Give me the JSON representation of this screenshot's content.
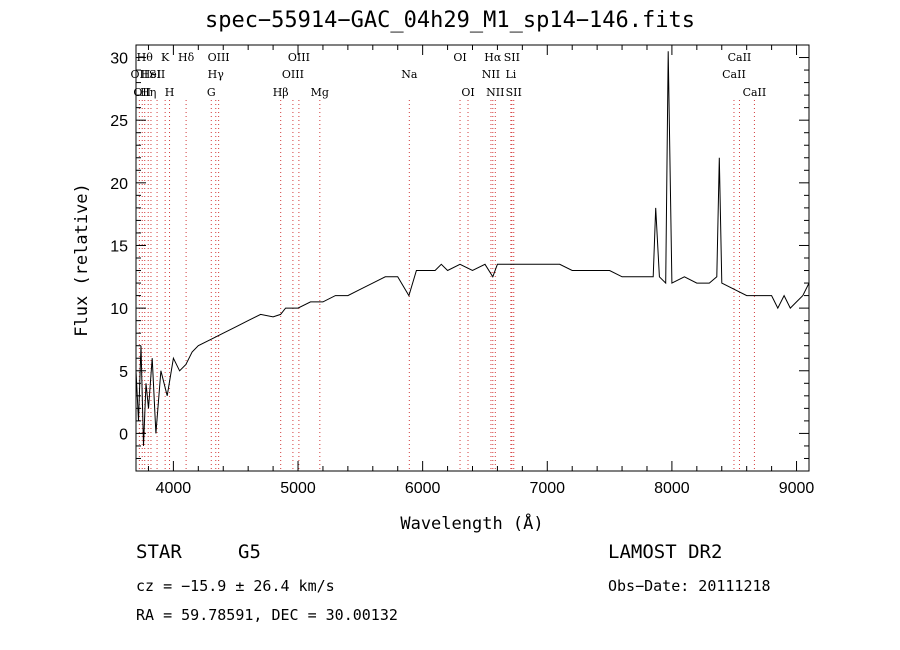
{
  "chart_data": {
    "type": "line",
    "title": "spec−55914−GAC_04h29_M1_sp14−146.fits",
    "xlabel": "Wavelength (Å)",
    "ylabel": "Flux (relative)",
    "xlim": [
      3700,
      9100
    ],
    "ylim": [
      -3,
      31
    ],
    "x_ticks": [
      4000,
      5000,
      6000,
      7000,
      8000,
      9000
    ],
    "y_ticks": [
      0,
      5,
      10,
      15,
      20,
      25,
      30
    ],
    "x_tick_labels": [
      "4000",
      "5000",
      "6000",
      "7000",
      "8000",
      "9000"
    ],
    "y_tick_labels": [
      "0",
      "5",
      "10",
      "15",
      "20",
      "25",
      "30"
    ],
    "grid": false,
    "series": [
      {
        "color": "#000000",
        "x": [
          3700,
          3720,
          3740,
          3760,
          3780,
          3800,
          3830,
          3860,
          3900,
          3950,
          4000,
          4050,
          4100,
          4150,
          4200,
          4300,
          4400,
          4500,
          4600,
          4700,
          4800,
          4860,
          4900,
          5000,
          5100,
          5200,
          5300,
          5400,
          5500,
          5600,
          5700,
          5800,
          5890,
          5950,
          6000,
          6100,
          6150,
          6200,
          6300,
          6400,
          6500,
          6563,
          6600,
          6700,
          6800,
          6900,
          7000,
          7100,
          7200,
          7300,
          7400,
          7500,
          7600,
          7700,
          7800,
          7850,
          7870,
          7900,
          7950,
          7970,
          8000,
          8100,
          8200,
          8300,
          8360,
          8380,
          8400,
          8500,
          8600,
          8700,
          8800,
          8850,
          8900,
          8950,
          9000,
          9050,
          9100
        ],
        "y": [
          5,
          1,
          7,
          -1,
          4,
          2,
          6,
          0,
          5,
          3,
          6,
          5,
          5.5,
          6.5,
          7,
          7.5,
          8,
          8.5,
          9,
          9.5,
          9.3,
          9.5,
          10,
          10,
          10.5,
          10.5,
          11,
          11,
          11.5,
          12,
          12.5,
          12.5,
          11,
          13,
          13,
          13,
          13.5,
          13,
          13.5,
          13,
          13.5,
          12.5,
          13.5,
          13.5,
          13.5,
          13.5,
          13.5,
          13.5,
          13,
          13,
          13,
          13,
          12.5,
          12.5,
          12.5,
          12.5,
          18,
          12.5,
          12,
          30.5,
          12,
          12.5,
          12,
          12,
          12.5,
          22,
          12,
          11.5,
          11,
          11,
          11,
          10,
          11,
          10,
          10.5,
          11,
          12
        ]
      }
    ],
    "lines": [
      {
        "x": 3727,
        "label": "OII",
        "row": 2
      },
      {
        "x": 3750,
        "label": "OII",
        "row": 3
      },
      {
        "x": 3770,
        "label": "Hθ",
        "row": 1
      },
      {
        "x": 3798,
        "label": "Hη",
        "row": 3
      },
      {
        "x": 3820,
        "label": "HeI",
        "row": 2
      },
      {
        "x": 3869,
        "label": "SII",
        "row": 2
      },
      {
        "x": 3934,
        "label": "K",
        "row": 1
      },
      {
        "x": 3969,
        "label": "H",
        "row": 3
      },
      {
        "x": 4102,
        "label": "Hδ",
        "row": 1
      },
      {
        "x": 4304,
        "label": "G",
        "row": 3
      },
      {
        "x": 4340,
        "label": "Hγ",
        "row": 2
      },
      {
        "x": 4363,
        "label": "OIII",
        "row": 1
      },
      {
        "x": 4861,
        "label": "Hβ",
        "row": 3
      },
      {
        "x": 4959,
        "label": "OIII",
        "row": 2
      },
      {
        "x": 5007,
        "label": "OIII",
        "row": 1
      },
      {
        "x": 5175,
        "label": "Mg",
        "row": 3
      },
      {
        "x": 5893,
        "label": "Na",
        "row": 2
      },
      {
        "x": 6300,
        "label": "OI",
        "row": 1
      },
      {
        "x": 6364,
        "label": "OI",
        "row": 3
      },
      {
        "x": 6548,
        "label": "NII",
        "row": 2
      },
      {
        "x": 6563,
        "label": "Hα",
        "row": 1
      },
      {
        "x": 6583,
        "label": "NII",
        "row": 3
      },
      {
        "x": 6708,
        "label": "Li",
        "row": 2
      },
      {
        "x": 6716,
        "label": "SII",
        "row": 1
      },
      {
        "x": 6731,
        "label": "SII",
        "row": 3
      },
      {
        "x": 8498,
        "label": "CaII",
        "row": 2
      },
      {
        "x": 8542,
        "label": "CaII",
        "row": 1
      },
      {
        "x": 8662,
        "label": "CaII",
        "row": 3
      }
    ]
  },
  "info": {
    "object_class": "STAR",
    "subclass": "G5",
    "survey": "LAMOST DR2",
    "cz": "cz = −15.9 ± 26.4 km/s",
    "obs_date": "Obs−Date: 20111218",
    "coords": "RA =  59.78591, DEC =  30.00132"
  }
}
